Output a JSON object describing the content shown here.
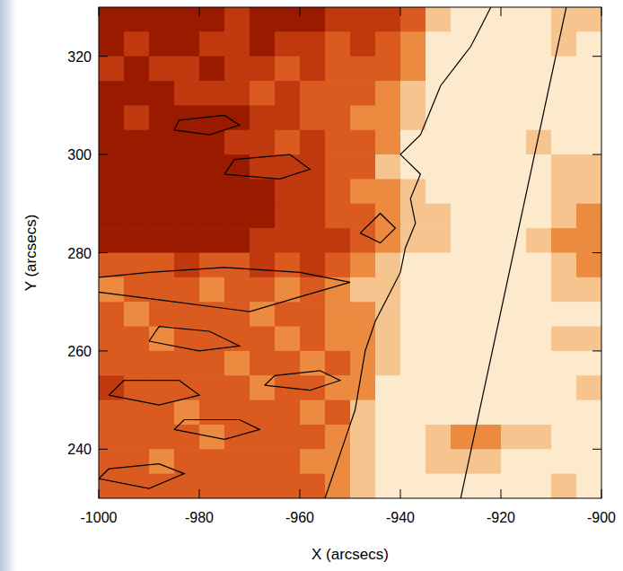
{
  "chart_data": {
    "type": "heatmap",
    "x_label": "X (arcsecs)",
    "y_label": "Y (arcsecs)",
    "xlim": [
      -1000,
      -900
    ],
    "ylim": [
      230,
      330
    ],
    "xticks": [
      -1000,
      -980,
      -960,
      -940,
      -920,
      -900
    ],
    "yticks": [
      240,
      260,
      280,
      300,
      320
    ],
    "zlim": [
      0,
      5
    ],
    "x": [
      -997.5,
      -992.5,
      -987.5,
      -982.5,
      -977.5,
      -972.5,
      -967.5,
      -962.5,
      -957.5,
      -952.5,
      -947.5,
      -942.5,
      -937.5,
      -932.5,
      -927.5,
      -922.5,
      -917.5,
      -912.5,
      -907.5,
      -902.5
    ],
    "y": [
      327.5,
      322.5,
      317.5,
      312.5,
      307.5,
      302.5,
      297.5,
      292.5,
      287.5,
      282.5,
      277.5,
      272.5,
      267.5,
      262.5,
      257.5,
      252.5,
      247.5,
      242.5,
      237.5,
      232.5
    ],
    "z": [
      [
        0,
        0,
        0,
        0,
        0,
        1,
        0,
        0,
        0,
        1,
        1,
        1,
        2,
        4,
        5,
        5,
        5,
        5,
        4,
        4
      ],
      [
        0,
        1,
        0,
        0,
        1,
        1,
        0,
        1,
        1,
        2,
        1,
        2,
        3,
        5,
        5,
        5,
        5,
        5,
        4,
        5
      ],
      [
        1,
        0,
        1,
        1,
        0,
        1,
        1,
        2,
        1,
        2,
        2,
        2,
        3,
        5,
        5,
        5,
        5,
        5,
        5,
        5
      ],
      [
        0,
        0,
        0,
        1,
        1,
        1,
        2,
        1,
        2,
        2,
        2,
        3,
        4,
        5,
        5,
        5,
        5,
        5,
        5,
        5
      ],
      [
        0,
        1,
        0,
        0,
        0,
        0,
        1,
        1,
        2,
        2,
        3,
        3,
        4,
        5,
        5,
        5,
        5,
        5,
        5,
        5
      ],
      [
        0,
        0,
        0,
        0,
        0,
        1,
        1,
        2,
        1,
        2,
        2,
        3,
        5,
        5,
        5,
        5,
        5,
        4,
        5,
        5
      ],
      [
        0,
        0,
        0,
        0,
        0,
        0,
        1,
        1,
        1,
        2,
        2,
        4,
        5,
        5,
        5,
        5,
        5,
        5,
        4,
        4
      ],
      [
        0,
        0,
        0,
        0,
        0,
        0,
        0,
        1,
        1,
        2,
        3,
        3,
        4,
        5,
        5,
        5,
        5,
        5,
        4,
        4
      ],
      [
        0,
        0,
        0,
        0,
        0,
        0,
        0,
        1,
        1,
        2,
        2,
        3,
        4,
        4,
        5,
        5,
        5,
        5,
        4,
        3
      ],
      [
        0,
        0,
        0,
        0,
        0,
        0,
        1,
        1,
        1,
        1,
        2,
        3,
        4,
        4,
        5,
        5,
        5,
        4,
        3,
        3
      ],
      [
        2,
        2,
        2,
        1,
        2,
        2,
        1,
        2,
        1,
        2,
        3,
        4,
        5,
        5,
        5,
        5,
        5,
        5,
        4,
        3
      ],
      [
        3,
        2,
        2,
        2,
        3,
        2,
        2,
        3,
        2,
        3,
        4,
        4,
        5,
        5,
        5,
        5,
        5,
        5,
        4,
        4
      ],
      [
        2,
        3,
        2,
        2,
        2,
        2,
        3,
        2,
        2,
        3,
        3,
        4,
        5,
        5,
        5,
        5,
        5,
        5,
        5,
        5
      ],
      [
        2,
        2,
        3,
        2,
        2,
        2,
        2,
        3,
        2,
        3,
        3,
        4,
        5,
        5,
        5,
        5,
        5,
        5,
        4,
        4
      ],
      [
        2,
        2,
        2,
        2,
        2,
        3,
        2,
        2,
        3,
        2,
        3,
        4,
        5,
        5,
        5,
        5,
        5,
        5,
        5,
        5
      ],
      [
        1,
        2,
        2,
        2,
        2,
        2,
        3,
        2,
        2,
        3,
        3,
        5,
        5,
        5,
        5,
        5,
        5,
        5,
        5,
        4
      ],
      [
        2,
        2,
        2,
        3,
        2,
        2,
        2,
        2,
        3,
        2,
        4,
        5,
        5,
        5,
        5,
        5,
        5,
        5,
        5,
        5
      ],
      [
        2,
        2,
        2,
        2,
        3,
        2,
        2,
        2,
        2,
        3,
        4,
        5,
        5,
        4,
        3,
        3,
        4,
        4,
        5,
        5
      ],
      [
        2,
        2,
        3,
        2,
        2,
        2,
        2,
        2,
        3,
        3,
        4,
        5,
        5,
        4,
        4,
        4,
        5,
        5,
        5,
        5
      ],
      [
        2,
        2,
        2,
        2,
        2,
        2,
        2,
        2,
        2,
        3,
        4,
        5,
        5,
        5,
        5,
        5,
        5,
        5,
        4,
        5
      ]
    ],
    "contours": [
      {
        "x": [
          -928,
          -907
        ],
        "y": [
          230,
          330
        ]
      },
      {
        "x": [
          -955,
          -953,
          -951,
          -949,
          -948,
          -947,
          -945,
          -942,
          -940,
          -939,
          -937,
          -938,
          -936,
          -940,
          -936,
          -934,
          -932,
          -929,
          -926,
          -924,
          -922
        ],
        "y": [
          230,
          236,
          242,
          248,
          254,
          260,
          266,
          272,
          276,
          281,
          286,
          291,
          296,
          300,
          304,
          309,
          314,
          318,
          322,
          326,
          330
        ]
      },
      {
        "x": [
          -985,
          -978,
          -972,
          -975,
          -984,
          -985
        ],
        "y": [
          305,
          304,
          306,
          308,
          307,
          305
        ]
      },
      {
        "x": [
          -975,
          -964,
          -958,
          -962,
          -973,
          -975
        ],
        "y": [
          296,
          295,
          297,
          300,
          299,
          296
        ]
      },
      {
        "x": [
          -1000,
          -985,
          -970,
          -960,
          -950,
          -960,
          -975,
          -990,
          -1000
        ],
        "y": [
          272,
          270,
          268,
          271,
          274,
          276,
          277,
          276,
          275
        ]
      },
      {
        "x": [
          -990,
          -980,
          -972,
          -978,
          -988,
          -990
        ],
        "y": [
          262,
          260,
          261,
          264,
          265,
          262
        ]
      },
      {
        "x": [
          -998,
          -988,
          -980,
          -984,
          -995,
          -998
        ],
        "y": [
          251,
          249,
          251,
          254,
          254,
          251
        ]
      },
      {
        "x": [
          -985,
          -975,
          -968,
          -972,
          -983,
          -985
        ],
        "y": [
          244,
          242,
          244,
          246,
          246,
          244
        ]
      },
      {
        "x": [
          -1000,
          -990,
          -983,
          -988,
          -998,
          -1000
        ],
        "y": [
          234,
          232,
          235,
          237,
          236,
          234
        ]
      },
      {
        "x": [
          -967,
          -958,
          -952,
          -956,
          -965,
          -967
        ],
        "y": [
          253,
          252,
          254,
          256,
          255,
          253
        ]
      },
      {
        "x": [
          -948,
          -944,
          -941,
          -944,
          -948
        ],
        "y": [
          284,
          282,
          285,
          288,
          284
        ]
      }
    ]
  }
}
